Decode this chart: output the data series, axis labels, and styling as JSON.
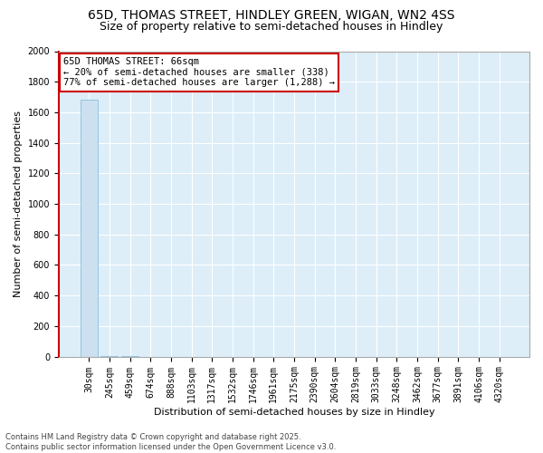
{
  "title": "65D, THOMAS STREET, HINDLEY GREEN, WIGAN, WN2 4SS",
  "subtitle": "Size of property relative to semi-detached houses in Hindley",
  "xlabel": "Distribution of semi-detached houses by size in Hindley",
  "ylabel": "Number of semi-detached properties",
  "bar_labels": [
    "30sqm",
    "245sqm",
    "459sqm",
    "674sqm",
    "888sqm",
    "1103sqm",
    "1317sqm",
    "1532sqm",
    "1746sqm",
    "1961sqm",
    "2175sqm",
    "2390sqm",
    "2604sqm",
    "2819sqm",
    "3033sqm",
    "3248sqm",
    "3462sqm",
    "3677sqm",
    "3891sqm",
    "4106sqm",
    "4320sqm"
  ],
  "bar_values": [
    1680,
    2,
    1,
    0,
    0,
    0,
    0,
    0,
    0,
    0,
    0,
    0,
    0,
    0,
    0,
    0,
    0,
    0,
    0,
    0,
    0
  ],
  "bar_color": "#cce0f0",
  "bar_edge_color": "#7ab8d9",
  "ylim": [
    0,
    2000
  ],
  "yticks": [
    0,
    200,
    400,
    600,
    800,
    1000,
    1200,
    1400,
    1600,
    1800,
    2000
  ],
  "property_bar_index": 0,
  "annotation_line1": "65D THOMAS STREET: 66sqm",
  "annotation_line2": "← 20% of semi-detached houses are smaller (338)",
  "annotation_line3": "77% of semi-detached houses are larger (1,288) →",
  "annotation_box_color": "#ffffff",
  "annotation_box_edge": "#cc0000",
  "vline_color": "#cc0000",
  "footer": "Contains HM Land Registry data © Crown copyright and database right 2025.\nContains public sector information licensed under the Open Government Licence v3.0.",
  "bg_color": "#ddeef8",
  "grid_color": "#ffffff",
  "title_fontsize": 10,
  "subtitle_fontsize": 9,
  "axis_label_fontsize": 8,
  "tick_fontsize": 7,
  "annotation_fontsize": 7.5,
  "footer_fontsize": 6
}
